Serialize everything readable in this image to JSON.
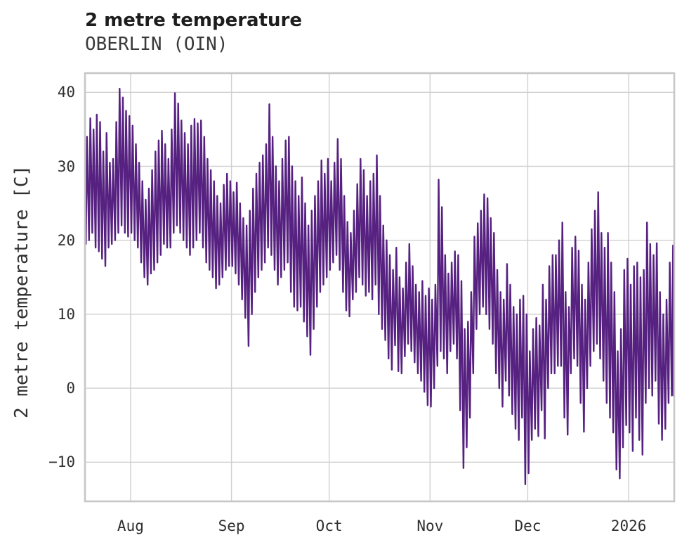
{
  "chart_data": {
    "type": "line",
    "title": "2 metre temperature",
    "subtitle": "OBERLIN (OIN)",
    "ylabel": "2 metre temperature [C]",
    "line_color": "#562180",
    "grid_color": "#d0d0d0",
    "frame_color": "#c7c7c7",
    "background": "#ffffff",
    "legend": "none",
    "grid": "on",
    "x_domain": [
      0,
      181
    ],
    "y_domain": [
      -15.3,
      42.6
    ],
    "x_ticks": [
      {
        "label": "Aug",
        "day": 14
      },
      {
        "label": "Sep",
        "day": 45
      },
      {
        "label": "Oct",
        "day": 75
      },
      {
        "label": "Nov",
        "day": 106
      },
      {
        "label": "Dec",
        "day": 136
      },
      {
        "label": "2026",
        "day": 167
      }
    ],
    "y_ticks": [
      {
        "label": "40",
        "value": 40
      },
      {
        "label": "30",
        "value": 30
      },
      {
        "label": "20",
        "value": 20
      },
      {
        "label": "10",
        "value": 10
      },
      {
        "label": "0",
        "value": 0
      },
      {
        "label": "−10",
        "value": -10
      }
    ],
    "series": [
      {
        "name": "2 metre temperature",
        "unit": "C",
        "sampling": "daily [min,max] pairs, day 0 at left frame edge (~2 weeks before Aug tick)",
        "daily_min_max": [
          [
            19.5,
            34
          ],
          [
            20,
            36.5
          ],
          [
            21,
            35
          ],
          [
            19,
            37
          ],
          [
            18.5,
            36
          ],
          [
            17.5,
            32
          ],
          [
            16.5,
            34.5
          ],
          [
            19,
            30.5
          ],
          [
            19.5,
            31
          ],
          [
            20,
            36
          ],
          [
            21,
            40.5
          ],
          [
            22,
            39.3
          ],
          [
            21,
            37.5
          ],
          [
            20.5,
            36.8
          ],
          [
            21,
            35.5
          ],
          [
            20,
            33
          ],
          [
            19,
            30.5
          ],
          [
            17,
            28
          ],
          [
            15,
            25.5
          ],
          [
            14,
            27
          ],
          [
            15.5,
            29.5
          ],
          [
            16,
            32
          ],
          [
            17,
            33.5
          ],
          [
            18,
            34.8
          ],
          [
            19.5,
            33
          ],
          [
            19,
            31
          ],
          [
            19,
            35
          ],
          [
            21,
            39.9
          ],
          [
            22,
            38.5
          ],
          [
            21,
            36.2
          ],
          [
            20,
            34.5
          ],
          [
            19,
            33
          ],
          [
            18,
            35.5
          ],
          [
            19,
            36.4
          ],
          [
            20,
            35.8
          ],
          [
            21,
            36.2
          ],
          [
            19,
            34
          ],
          [
            17,
            31
          ],
          [
            16,
            29.5
          ],
          [
            15,
            28
          ],
          [
            13.5,
            26
          ],
          [
            14,
            25
          ],
          [
            15,
            27.5
          ],
          [
            16,
            29
          ],
          [
            16.5,
            28
          ],
          [
            16.5,
            26.5
          ],
          [
            15.5,
            27.8
          ],
          [
            14,
            25
          ],
          [
            12,
            23
          ],
          [
            9.5,
            22
          ],
          [
            5.7,
            24
          ],
          [
            10,
            27
          ],
          [
            13,
            29
          ],
          [
            15,
            30.5
          ],
          [
            16,
            31.5
          ],
          [
            17,
            33
          ],
          [
            19,
            38.4
          ],
          [
            18,
            34
          ],
          [
            16,
            30
          ],
          [
            14,
            28
          ],
          [
            15,
            31
          ],
          [
            16,
            33.5
          ],
          [
            17,
            34
          ],
          [
            13,
            30
          ],
          [
            11,
            28
          ],
          [
            10.5,
            26
          ],
          [
            11,
            28.5
          ],
          [
            9,
            25
          ],
          [
            7,
            22
          ],
          [
            4.5,
            24
          ],
          [
            8,
            26
          ],
          [
            11,
            28
          ],
          [
            13,
            30.8
          ],
          [
            14,
            29
          ],
          [
            15,
            31
          ],
          [
            16,
            28
          ],
          [
            17,
            30.5
          ],
          [
            18,
            33.7
          ],
          [
            16,
            31
          ],
          [
            13,
            26
          ],
          [
            10.5,
            22.5
          ],
          [
            9.7,
            21
          ],
          [
            12,
            24
          ],
          [
            13,
            27.6
          ],
          [
            15,
            31
          ],
          [
            14,
            29.5
          ],
          [
            12.5,
            26
          ],
          [
            13,
            28
          ],
          [
            12,
            29
          ],
          [
            14,
            31.5
          ],
          [
            10,
            26
          ],
          [
            8,
            22
          ],
          [
            6.5,
            20
          ],
          [
            4,
            18
          ],
          [
            2.5,
            16
          ],
          [
            5.8,
            19
          ],
          [
            2.3,
            15
          ],
          [
            2,
            13.5
          ],
          [
            4.3,
            17
          ],
          [
            6,
            19.5
          ],
          [
            5,
            16.5
          ],
          [
            3.5,
            14
          ],
          [
            2,
            13
          ],
          [
            1,
            14.5
          ],
          [
            -0.5,
            12.5
          ],
          [
            -2.3,
            13.5
          ],
          [
            -2.5,
            12
          ],
          [
            0,
            14
          ],
          [
            3,
            28.2
          ],
          [
            5,
            24.5
          ],
          [
            4,
            18
          ],
          [
            2,
            15.5
          ],
          [
            5,
            17
          ],
          [
            6,
            18.5
          ],
          [
            4,
            18
          ],
          [
            -3,
            14.5
          ],
          [
            -10.8,
            8
          ],
          [
            -8,
            9
          ],
          [
            -4,
            13
          ],
          [
            2,
            20.5
          ],
          [
            8,
            22.3
          ],
          [
            10,
            24
          ],
          [
            11,
            26.2
          ],
          [
            10,
            25.7
          ],
          [
            8,
            23
          ],
          [
            6,
            21
          ],
          [
            2,
            16
          ],
          [
            0,
            13
          ],
          [
            -2.5,
            12
          ],
          [
            1,
            16.8
          ],
          [
            -1,
            14
          ],
          [
            -3.5,
            11
          ],
          [
            -5.5,
            10
          ],
          [
            -7,
            12
          ],
          [
            -4,
            12.5
          ],
          [
            -13,
            10
          ],
          [
            -11.5,
            5
          ],
          [
            -7,
            8
          ],
          [
            -5.5,
            9.5
          ],
          [
            -6.5,
            8.5
          ],
          [
            -3,
            14
          ],
          [
            -6.8,
            12
          ],
          [
            0,
            16.5
          ],
          [
            2,
            18
          ],
          [
            2,
            18
          ],
          [
            3,
            20
          ],
          [
            3,
            22.4
          ],
          [
            -4,
            13
          ],
          [
            -6.3,
            11
          ],
          [
            2,
            19
          ],
          [
            4,
            20.5
          ],
          [
            3,
            18.6
          ],
          [
            -2,
            14
          ],
          [
            -5.9,
            12
          ],
          [
            0,
            17
          ],
          [
            3,
            21.5
          ],
          [
            5,
            24
          ],
          [
            6,
            26.5
          ],
          [
            4,
            21
          ],
          [
            1,
            19
          ],
          [
            -2,
            21
          ],
          [
            -4,
            17
          ],
          [
            -6,
            13
          ],
          [
            -11,
            5
          ],
          [
            -12.2,
            8
          ],
          [
            -8,
            16
          ],
          [
            -5,
            17.5
          ],
          [
            -6,
            14
          ],
          [
            -8.5,
            16.5
          ],
          [
            -4,
            17
          ],
          [
            -7,
            15
          ],
          [
            -9,
            16
          ],
          [
            -2,
            22.4
          ],
          [
            0,
            19.5
          ],
          [
            -1,
            18
          ],
          [
            1,
            19.6
          ],
          [
            -4.8,
            13
          ],
          [
            -7,
            10
          ],
          [
            -5.5,
            12
          ],
          [
            -2,
            17
          ],
          [
            -1,
            19.3
          ],
          [
            -1,
            null
          ]
        ]
      }
    ]
  }
}
